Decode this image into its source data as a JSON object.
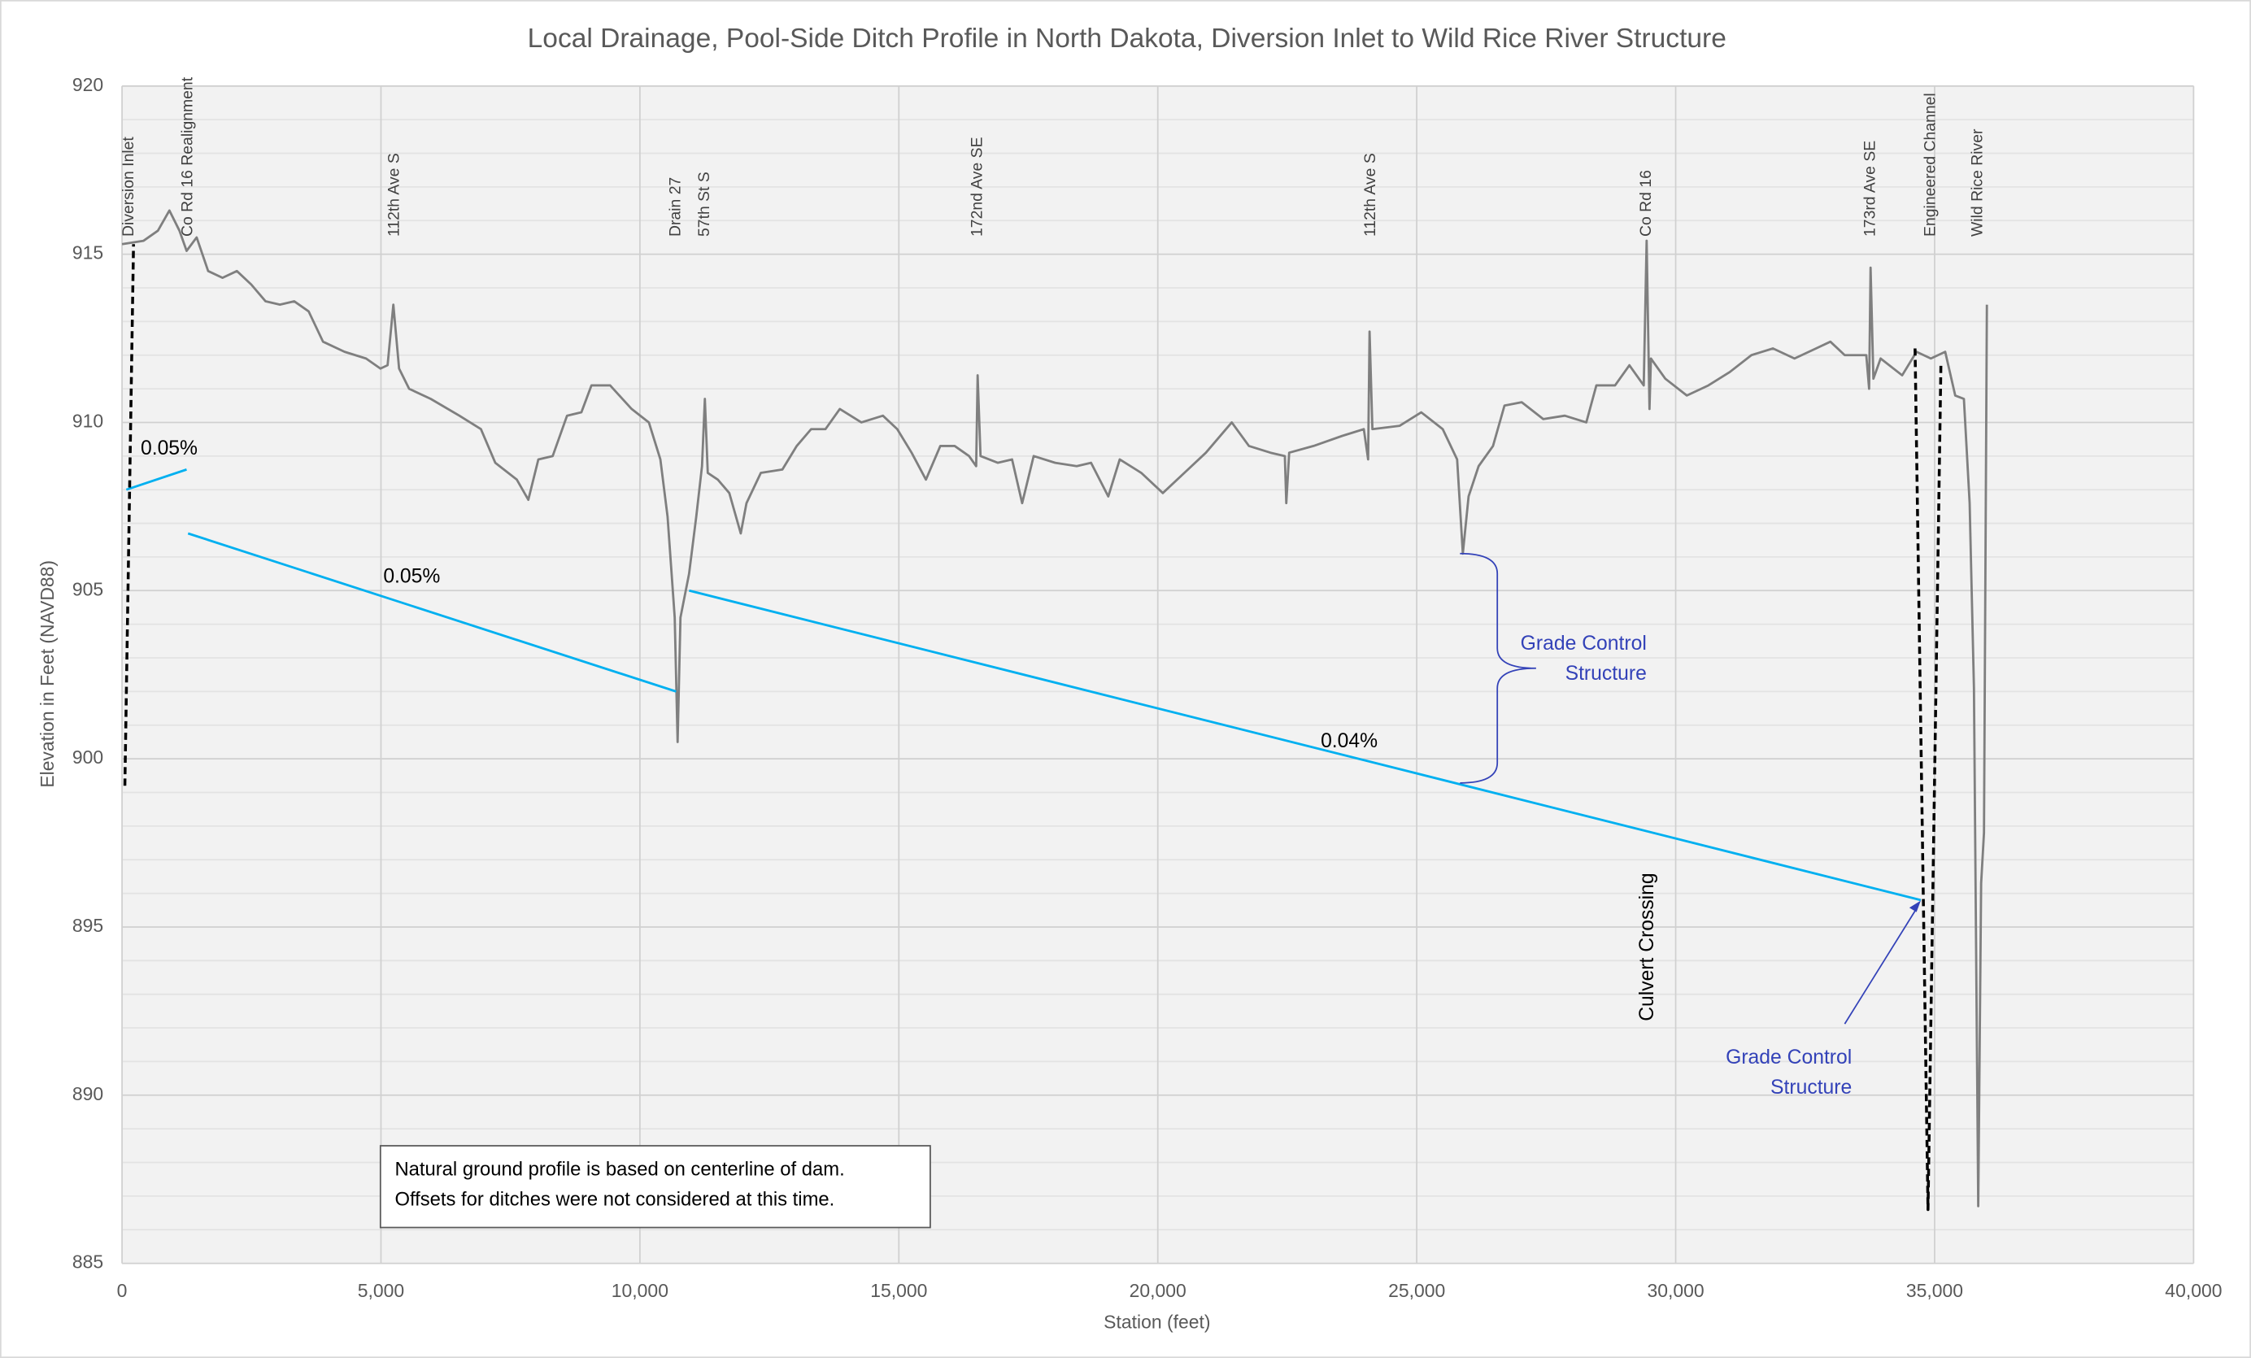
{
  "chart_data": {
    "type": "line",
    "title": "Local Drainage, Pool-Side Ditch Profile in North Dakota, Diversion Inlet to Wild Rice River Structure",
    "x_label": "Station (feet)",
    "y_label": "Elevation in Feet (NAVD88)",
    "xlim": [
      0,
      40000
    ],
    "ylim": [
      885,
      920
    ],
    "xticks": [
      0,
      {
        "value": 5000,
        "label": "5,000"
      },
      {
        "value": 10000,
        "label": "10,000"
      },
      {
        "value": 15000,
        "label": "15,000"
      },
      {
        "value": 20000,
        "label": "20,000"
      },
      {
        "value": 25000,
        "label": "25,000"
      },
      {
        "value": 30000,
        "label": "30,000"
      },
      {
        "value": 35000,
        "label": "35,000"
      },
      {
        "value": 40000,
        "label": "40,000"
      }
    ],
    "yticks": [
      885,
      890,
      895,
      900,
      905,
      910,
      915,
      920
    ],
    "minor_yticks": [
      886,
      887,
      888,
      889,
      891,
      892,
      893,
      894,
      896,
      897,
      898,
      899,
      901,
      902,
      903,
      904,
      906,
      907,
      908,
      909,
      911,
      912,
      913,
      914,
      916,
      917,
      918,
      919
    ],
    "grid": true,
    "legend": false,
    "series": [
      {
        "color": "#7f7f7f",
        "style": "solid",
        "x": [
          0,
          416,
          693,
          915,
          1109,
          1247,
          1441,
          1663,
          1940,
          2218,
          2495,
          2772,
          3049,
          3326,
          3604,
          3881,
          4297,
          4712,
          4990,
          5128,
          5239,
          5350,
          5544,
          5960,
          6514,
          6930,
          7207,
          7623,
          7845,
          8039,
          8316,
          8593,
          8870,
          9064,
          9425,
          9840,
          10173,
          10395,
          10534,
          10672,
          10728,
          10783,
          10949,
          11088,
          11199,
          11254,
          11310,
          11504,
          11726,
          11947,
          12058,
          12335,
          12751,
          13028,
          13306,
          13583,
          13860,
          14276,
          14692,
          14969,
          15246,
          15523,
          15800,
          16078,
          16355,
          16493,
          16521,
          16577,
          16909,
          17186,
          17381,
          17603,
          18018,
          18434,
          18711,
          19044,
          19265,
          19681,
          20097,
          20513,
          20929,
          21428,
          21760,
          22176,
          22453,
          22481,
          22537,
          23008,
          23562,
          23978,
          24061,
          24089,
          24144,
          24671,
          25087,
          25502,
          25780,
          25890,
          26001,
          26195,
          26473,
          26694,
          27027,
          27443,
          27859,
          28274,
          28468,
          28829,
          29106,
          29383,
          29439,
          29494,
          29522,
          29799,
          30215,
          30631,
          31046,
          31462,
          31878,
          32294,
          32710,
          32987,
          33264,
          33680,
          33735,
          33763,
          33818,
          33957,
          34373,
          34650,
          34927,
          35204,
          35398,
          35565,
          35676,
          35759,
          35842,
          35898,
          35953,
          36009
        ],
        "values": [
          915.3,
          915.4,
          915.7,
          916.3,
          915.7,
          915.1,
          915.5,
          914.5,
          914.3,
          914.5,
          914.1,
          913.6,
          913.5,
          913.6,
          913.3,
          912.4,
          912.1,
          911.9,
          911.6,
          911.7,
          913.5,
          911.6,
          911.0,
          910.7,
          910.2,
          909.8,
          908.8,
          908.3,
          907.7,
          908.9,
          909.0,
          910.2,
          910.3,
          911.1,
          911.1,
          910.4,
          910.0,
          908.9,
          907.2,
          904.2,
          900.5,
          904.2,
          905.5,
          907.2,
          908.7,
          910.7,
          908.5,
          908.3,
          907.9,
          906.7,
          907.6,
          908.5,
          908.6,
          909.3,
          909.8,
          909.8,
          910.4,
          910.0,
          910.2,
          909.8,
          909.1,
          908.3,
          909.3,
          909.3,
          909.0,
          908.7,
          911.4,
          909.0,
          908.8,
          908.9,
          907.6,
          909.0,
          908.8,
          908.7,
          908.8,
          907.8,
          908.9,
          908.5,
          907.9,
          908.5,
          909.1,
          910.0,
          909.3,
          909.1,
          909.0,
          907.6,
          909.1,
          909.3,
          909.6,
          909.8,
          908.9,
          912.7,
          909.8,
          909.9,
          910.3,
          909.8,
          908.9,
          906.1,
          907.8,
          908.7,
          909.3,
          910.5,
          910.6,
          910.1,
          910.2,
          910.0,
          911.1,
          911.1,
          911.7,
          911.1,
          915.4,
          910.4,
          911.9,
          911.3,
          910.8,
          911.1,
          911.5,
          912.0,
          912.2,
          911.9,
          912.2,
          912.4,
          912.0,
          912.0,
          911.0,
          914.6,
          911.3,
          911.9,
          911.4,
          912.1,
          911.9,
          912.1,
          910.8,
          910.7,
          907.6,
          902.1,
          886.7,
          896.3,
          897.8,
          913.5
        ]
      },
      {
        "color": "#00b0f0",
        "style": "solid",
        "x": [
          83,
          1247
        ],
        "values": [
          908.0,
          908.6
        ]
      },
      {
        "color": "#00b0f0",
        "style": "solid",
        "x": [
          1275,
          10700
        ],
        "values": [
          906.7,
          902.0
        ]
      },
      {
        "color": "#00b0f0",
        "style": "solid",
        "x": [
          10950,
          34733
        ],
        "values": [
          905.0,
          895.8
        ]
      },
      {
        "color": "#000000",
        "style": "dashed",
        "x": [
          55,
          222
        ],
        "values": [
          899.2,
          915.3
        ]
      },
      {
        "color": "#000000",
        "style": "dashed",
        "x": [
          34622,
          34872,
          35121
        ],
        "values": [
          912.2,
          886.6,
          911.7
        ]
      }
    ],
    "station_labels": [
      {
        "text": "Diversion Inlet",
        "x": 139
      },
      {
        "text": "Co Rd 16 Realignment",
        "x": 1275
      },
      {
        "text": "112th Ave S",
        "x": 5267
      },
      {
        "text": "Drain 27",
        "x": 10700
      },
      {
        "text": "57th St S",
        "x": 11254
      },
      {
        "text": "172nd Ave SE",
        "x": 16521
      },
      {
        "text": "112th Ave S",
        "x": 24116
      },
      {
        "text": "Co Rd 16",
        "x": 29439
      },
      {
        "text": "173rd Ave SE",
        "x": 33763
      },
      {
        "text": "Engineered Channel",
        "x": 34927
      },
      {
        "text": "Wild Rice River",
        "x": 35842
      }
    ],
    "annotations": [
      {
        "text": "0.05%",
        "x": 360,
        "y": 909.2,
        "color": "#000000"
      },
      {
        "text": "0.05%",
        "x": 5045,
        "y": 905.4,
        "color": "#000000"
      },
      {
        "text": "0.04%",
        "x": 23146,
        "y": 900.5,
        "color": "#000000"
      },
      {
        "text": "Grade Control",
        "x": 29439,
        "y": 903.4,
        "color": "#3342b8",
        "anchor": "end"
      },
      {
        "text": "Structure",
        "x": 29439,
        "y": 902.5,
        "color": "#3342b8",
        "anchor": "end"
      },
      {
        "text": "Grade Control",
        "x": 33403,
        "y": 891.1,
        "color": "#3342b8",
        "anchor": "end"
      },
      {
        "text": "Structure",
        "x": 33403,
        "y": 890.2,
        "color": "#3342b8",
        "anchor": "end"
      },
      {
        "text": "Culvert Crossing",
        "x": 29467,
        "y": 892.2,
        "color": "#000000",
        "rotate": true
      }
    ],
    "note": [
      "Natural ground profile is based on centerline of dam.",
      "Offsets for ditches were not considered at this time."
    ]
  }
}
